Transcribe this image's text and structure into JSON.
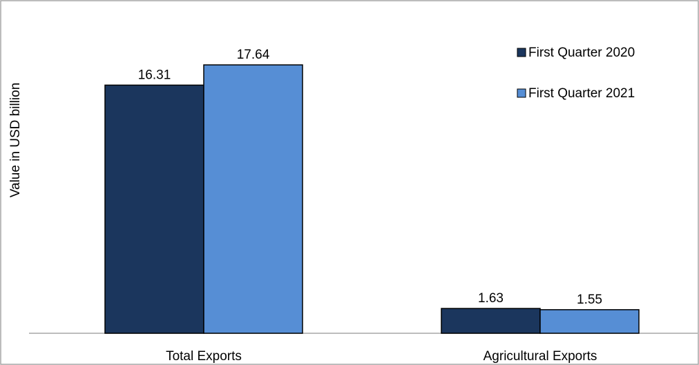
{
  "chart_data": {
    "type": "bar",
    "title": "",
    "xlabel": "",
    "ylabel": "Value in USD billion",
    "categories": [
      "Total Exports",
      "Agricultural Exports"
    ],
    "series": [
      {
        "name": "First Quarter 2020",
        "values": [
          16.31,
          1.63
        ],
        "color": "#1B365D"
      },
      {
        "name": "First Quarter 2021",
        "values": [
          17.64,
          1.55
        ],
        "color": "#568ED5"
      }
    ],
    "data_labels": [
      [
        "16.31",
        "1.63"
      ],
      [
        "17.64",
        "1.55"
      ]
    ],
    "ylim": [
      0,
      20
    ],
    "grid": false,
    "legend_position": "top-right",
    "frame_color": "#A6A6A6",
    "bar_edge_color": "#000000"
  }
}
